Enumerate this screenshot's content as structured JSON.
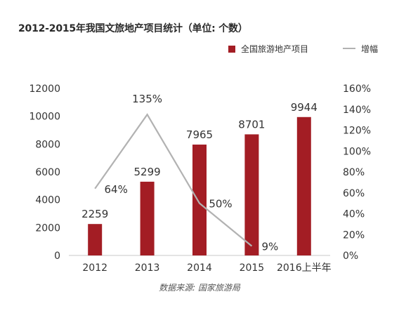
{
  "title": "2012-2015年我国文旅地产项目统计（单位: 个数）",
  "source": "数据来源: 国家旅游局",
  "colors": {
    "bar": "#a31d24",
    "line": "#b2b2b2",
    "axis": "#c8c8c8",
    "text": "#333333"
  },
  "chart_data": {
    "type": "bar",
    "title": "2012-2015年我国文旅地产项目统计（单位: 个数）",
    "categories": [
      "2012",
      "2013",
      "2014",
      "2015",
      "2016上半年"
    ],
    "series": [
      {
        "name": "全国旅游地产项目",
        "type": "bar",
        "axis": "left",
        "values": [
          2259,
          5299,
          7965,
          8701,
          9944
        ],
        "labels": [
          "2259",
          "5299",
          "7965",
          "8701",
          "9944"
        ]
      },
      {
        "name": "增幅",
        "type": "line",
        "axis": "right",
        "values": [
          64,
          135,
          50,
          9,
          null
        ],
        "labels": [
          "64%",
          "135%",
          "50%",
          "9%",
          ""
        ]
      }
    ],
    "y_left": {
      "min": 0,
      "max": 12000,
      "ticks": [
        "0",
        "2000",
        "4000",
        "6000",
        "8000",
        "10000",
        "12000"
      ]
    },
    "y_right": {
      "min": 0,
      "max": 160,
      "ticks": [
        "0%",
        "20%",
        "40%",
        "60%",
        "80%",
        "100%",
        "120%",
        "140%",
        "160%"
      ]
    },
    "legend_position": "top-right",
    "grid": false
  }
}
